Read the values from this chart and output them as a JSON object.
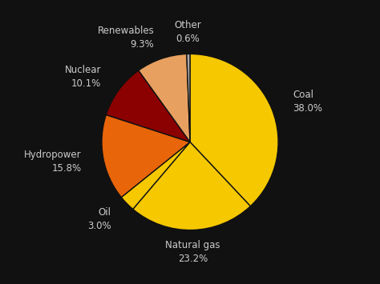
{
  "labels": [
    "Coal",
    "Natural gas",
    "Oil",
    "Hydropower",
    "Nuclear",
    "Renewables",
    "Other"
  ],
  "values": [
    38.0,
    23.2,
    3.0,
    15.8,
    10.1,
    9.3,
    0.6
  ],
  "colors": [
    "#f5c800",
    "#f5c800",
    "#f5c800",
    "#e8650a",
    "#8b0000",
    "#e8a060",
    "#aaaaaa"
  ],
  "background_color": "#111111",
  "text_color": "#cccccc",
  "label_fontsize": 8.5,
  "value_fontsize": 10,
  "startangle": 90
}
